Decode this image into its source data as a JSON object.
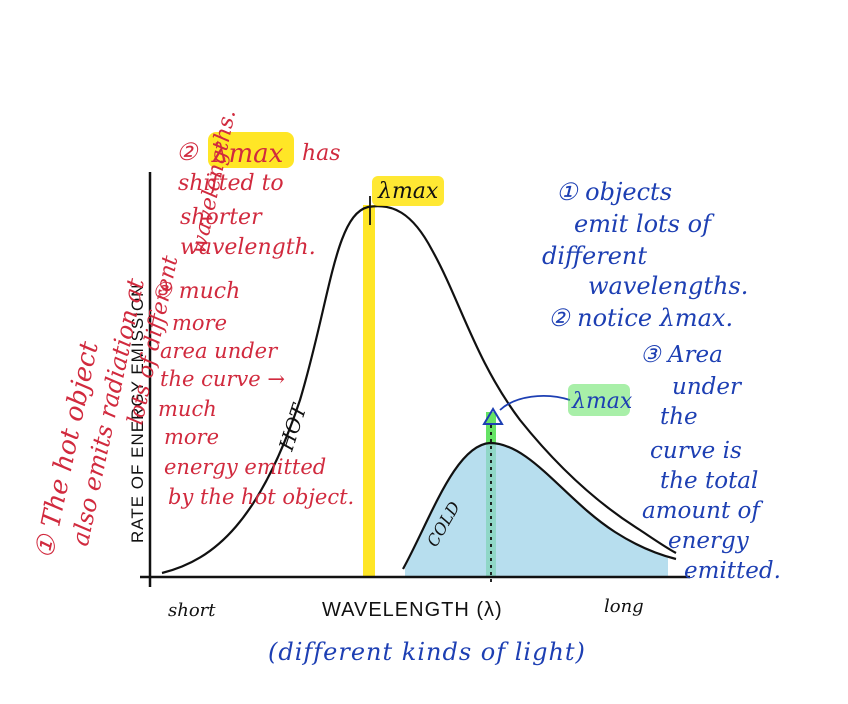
{
  "colors": {
    "ink_black": "#111111",
    "ink_red": "#d12a3e",
    "ink_blue": "#1d3fb3",
    "highlight_yellow": "#ffe200",
    "highlight_green": "#3fdc3f",
    "shade_blue": "#9fd3e8"
  },
  "axes": {
    "y_label": "RATE OF ENERGY EMISSION",
    "x_label": "WAVELENGTH (λ)",
    "x_short": "short",
    "x_long": "long",
    "x_subtitle": "(different kinds of light)"
  },
  "curves": {
    "hot_label": "HOT",
    "cold_label": "COLD",
    "lambda_max_hot": "λmax",
    "lambda_max_cold": "λmax"
  },
  "red_notes": {
    "left_vertical": [
      "① The hot object",
      "also emits radiation at",
      "lots of different",
      "wavelengths."
    ],
    "note2": [
      "②",
      "λmax",
      "has",
      "shifted to",
      "shorter",
      "wavelength."
    ],
    "note3": [
      "③ much",
      "more",
      "area under",
      "the curve →",
      "much",
      "more",
      "energy emitted",
      "by the hot object."
    ]
  },
  "blue_notes": {
    "note1": [
      "① objects",
      "emit lots of",
      "different",
      "wavelengths."
    ],
    "note2": [
      "② notice λmax."
    ],
    "note3": [
      "③ Area",
      "under",
      "the",
      "curve is",
      "the total",
      "amount of",
      "energy",
      "emitted."
    ]
  }
}
